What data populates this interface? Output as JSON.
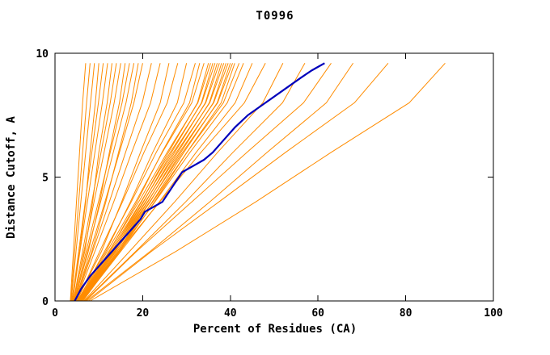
{
  "chart_data": {
    "type": "line",
    "title": "T0996",
    "xlabel": "Percent of Residues (CA)",
    "ylabel": "Distance Cutoff, A",
    "xlim": [
      0,
      100
    ],
    "ylim": [
      0,
      10
    ],
    "xticks": [
      0,
      20,
      40,
      60,
      80,
      100
    ],
    "yticks": [
      0,
      5,
      10
    ],
    "grid": false,
    "legend": "none",
    "colors": {
      "models": "#ff8c00",
      "highlight": "#0000bb",
      "axis": "#000000",
      "background": "#ffffff"
    },
    "y_samples": [
      0,
      2,
      4,
      6,
      8,
      9.6
    ],
    "model_curves_x": [
      [
        3.5,
        4.2,
        4.9,
        5.6,
        6.3,
        7.0
      ],
      [
        3.6,
        4.5,
        5.4,
        6.3,
        7.2,
        8.0
      ],
      [
        3.7,
        4.8,
        5.9,
        7.0,
        8.1,
        9.0
      ],
      [
        3.8,
        5.6,
        7.0,
        8.0,
        9.2,
        10.0
      ],
      [
        3.9,
        5.4,
        6.9,
        8.4,
        9.9,
        11.0
      ],
      [
        4.0,
        5.7,
        7.4,
        9.1,
        10.8,
        12.0
      ],
      [
        4.1,
        6.8,
        8.6,
        10.0,
        11.9,
        13.0
      ],
      [
        4.2,
        6.3,
        8.4,
        10.5,
        12.6,
        14.0
      ],
      [
        4.3,
        6.6,
        8.9,
        11.2,
        13.5,
        15.0
      ],
      [
        4.4,
        7.6,
        10.2,
        12.4,
        14.7,
        16.0
      ],
      [
        4.4,
        7.1,
        9.9,
        12.6,
        15.3,
        17.0
      ],
      [
        4.5,
        7.4,
        10.4,
        13.3,
        16.2,
        18.0
      ],
      [
        4.5,
        8.4,
        11.6,
        14.5,
        17.4,
        19.0
      ],
      [
        4.6,
        8.0,
        11.4,
        14.7,
        18.0,
        20.0
      ],
      [
        4.7,
        8.6,
        12.4,
        16.1,
        19.9,
        22.0
      ],
      [
        4.8,
        9.1,
        13.4,
        17.5,
        21.8,
        24.0
      ],
      [
        4.9,
        10.6,
        15.2,
        19.5,
        24.0,
        26.0
      ],
      [
        5.0,
        10.2,
        15.4,
        20.3,
        25.6,
        28.0
      ],
      [
        5.1,
        11.6,
        17.2,
        22.3,
        27.9,
        30.0
      ],
      [
        5.2,
        11.3,
        17.4,
        23.1,
        29.4,
        32.0
      ],
      [
        5.3,
        12.4,
        18.7,
        24.4,
        30.7,
        33.0
      ],
      [
        5.3,
        11.9,
        18.4,
        24.5,
        31.2,
        34.0
      ],
      [
        5.4,
        13.0,
        19.7,
        25.9,
        32.5,
        35.0
      ],
      [
        5.4,
        12.3,
        19.1,
        25.6,
        32.6,
        35.5
      ],
      [
        5.5,
        13.3,
        20.2,
        26.6,
        33.4,
        36.0
      ],
      [
        5.5,
        12.6,
        19.6,
        26.3,
        33.5,
        36.5
      ],
      [
        5.6,
        13.6,
        20.7,
        27.3,
        34.3,
        37.0
      ],
      [
        5.6,
        12.9,
        20.1,
        27.0,
        34.4,
        37.5
      ],
      [
        5.7,
        13.9,
        21.2,
        28.0,
        35.2,
        38.0
      ],
      [
        5.7,
        13.2,
        20.6,
        27.7,
        35.3,
        38.5
      ],
      [
        5.8,
        14.2,
        21.7,
        28.7,
        36.1,
        39.0
      ],
      [
        5.8,
        13.5,
        21.1,
        28.4,
        36.2,
        39.5
      ],
      [
        5.9,
        14.5,
        22.2,
        29.4,
        37.0,
        40.0
      ],
      [
        5.9,
        13.8,
        21.6,
        29.1,
        37.1,
        40.5
      ],
      [
        6.0,
        14.8,
        22.7,
        30.1,
        37.9,
        41.0
      ],
      [
        6.0,
        14.2,
        22.3,
        30.1,
        38.4,
        42.0
      ],
      [
        6.1,
        14.5,
        22.8,
        30.8,
        39.3,
        43.0
      ],
      [
        6.2,
        15.0,
        23.8,
        32.2,
        41.1,
        45.0
      ],
      [
        6.4,
        14.6,
        23.9,
        33.3,
        43.2,
        48.0
      ],
      [
        6.6,
        17.0,
        27.3,
        37.1,
        47.4,
        52.0
      ],
      [
        6.8,
        18.4,
        29.8,
        40.6,
        51.9,
        57.0
      ],
      [
        7.0,
        18.6,
        31.2,
        43.8,
        56.7,
        63.0
      ],
      [
        7.2,
        21.7,
        35.3,
        48.4,
        61.9,
        68.0
      ],
      [
        7.6,
        22.0,
        37.4,
        52.6,
        68.3,
        76.0
      ],
      [
        8.0,
        27.6,
        45.8,
        63.0,
        80.8,
        89.0
      ]
    ],
    "highlight_curve": {
      "y": [
        0,
        0.5,
        1,
        1.5,
        2,
        2.5,
        3,
        3.3,
        3.6,
        4,
        4.4,
        4.8,
        5.2,
        5.5,
        5.7,
        6,
        6.5,
        7,
        7.5,
        8,
        8.5,
        9,
        9.3,
        9.45,
        9.6
      ],
      "x": [
        4.5,
        6.0,
        8.0,
        10.5,
        13.0,
        15.5,
        18.0,
        19.5,
        20.5,
        24.5,
        26.0,
        27.5,
        29.0,
        32.0,
        34.0,
        36.0,
        38.5,
        41.0,
        44.0,
        48.0,
        52.0,
        56.0,
        58.5,
        60.0,
        61.5
      ]
    }
  }
}
